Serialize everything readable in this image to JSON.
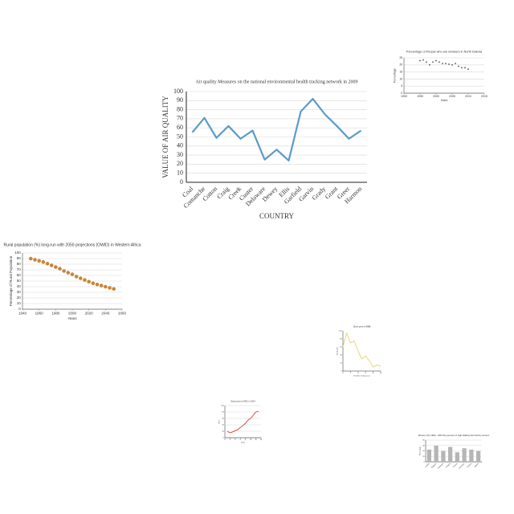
{
  "chart_data": [
    {
      "type": "line",
      "title": "Air quality Measures on the national environmental health tracking network in 2009",
      "x_label": "COUNTRY",
      "y_label": "VALUE OF AIR QUALITY",
      "categories": [
        "Coal",
        "Comanche",
        "Cotton",
        "Craig",
        "Creek",
        "Custer",
        "Delaware",
        "Dewey",
        "Ellis",
        "Garfield",
        "Garvin",
        "Grady",
        "Grant",
        "Greer",
        "Harmon"
      ],
      "values": [
        55,
        71,
        49,
        62,
        48,
        57,
        25,
        36,
        24,
        78,
        92,
        75,
        62,
        48,
        57
      ],
      "color": "#5b9bc8",
      "ylim": [
        0,
        100
      ],
      "yticks": [
        0,
        10,
        20,
        30,
        40,
        50,
        60,
        70,
        80,
        90,
        100
      ],
      "grid": true
    },
    {
      "type": "scatter",
      "title": "Percentage of People who are smokers in North Dakota",
      "x_label": "Years",
      "y_label": "Percentage",
      "x": [
        1995,
        1996,
        1997,
        1998,
        1999,
        2000,
        2001,
        2002,
        2003,
        2004,
        2005,
        2006,
        2007,
        2008,
        2009,
        2010
      ],
      "values": [
        23,
        23.5,
        22,
        20,
        22,
        23,
        22,
        21,
        21,
        20.5,
        20,
        21,
        19,
        18,
        18,
        17
      ],
      "color": "#555555",
      "xlim": [
        1990,
        2015
      ],
      "xticks": [
        1990,
        1995,
        2000,
        2005,
        2010,
        2015
      ],
      "ylim": [
        0,
        25
      ],
      "yticks": [
        0,
        5,
        10,
        15,
        20,
        25
      ],
      "grid": true
    },
    {
      "type": "scatter",
      "title": "Rural population (%) long-run with 2050 projections (OWID) in Western Africa",
      "x_label": "Years",
      "y_label": "Percentage of Rural Population",
      "x": [
        1950,
        1955,
        1960,
        1965,
        1970,
        1975,
        1980,
        1985,
        1990,
        1995,
        2000,
        2005,
        2010,
        2015,
        2020,
        2025,
        2030,
        2035,
        2040,
        2045,
        2050
      ],
      "values": [
        90,
        88,
        86,
        84,
        81,
        78,
        75,
        72,
        68,
        65,
        62,
        58,
        55,
        52,
        49,
        46,
        44,
        42,
        40,
        38,
        36
      ],
      "color": "#c8853a",
      "xlim": [
        1940,
        2060
      ],
      "xticks": [
        1940,
        1960,
        1980,
        2000,
        2020,
        2040,
        2060
      ],
      "ylim": [
        0,
        100
      ],
      "yticks": [
        0,
        10,
        20,
        30,
        40,
        50,
        60,
        70,
        80,
        90,
        100
      ],
      "grid": true
    },
    {
      "type": "line",
      "title": "Stock price of BBB",
      "x_label": "Number of days past",
      "y_label": "Stock price",
      "x": [
        0,
        1,
        2,
        3,
        4,
        5,
        6,
        7,
        8,
        9,
        10
      ],
      "values": [
        60,
        95,
        70,
        75,
        50,
        30,
        38,
        25,
        10,
        15,
        12
      ],
      "color": "#e6d77a",
      "xlim": [
        0,
        10
      ],
      "xticks": [
        0,
        2,
        4,
        6,
        8,
        10
      ],
      "ylim": [
        0,
        100
      ],
      "yticks": [
        0,
        20,
        40,
        60,
        80,
        100
      ],
      "grid": false
    },
    {
      "type": "line",
      "title": "Stock price of ABC in 2014",
      "x_label": "Days",
      "y_label": "Price",
      "x": [
        1,
        2,
        3,
        4,
        5,
        6,
        7,
        8,
        9,
        10,
        11,
        12,
        13
      ],
      "values": [
        20,
        15,
        18,
        22,
        25,
        32,
        38,
        45,
        55,
        60,
        70,
        80,
        82
      ],
      "color": "#d43a2a",
      "xlim": [
        0,
        14
      ],
      "xticks": [
        0,
        2,
        4,
        6,
        8,
        10,
        12,
        14
      ],
      "ylim": [
        0,
        100
      ],
      "yticks": [
        0,
        20,
        40,
        60,
        80,
        100
      ],
      "grid": true
    },
    {
      "type": "bar",
      "title": "Women (%) 1990 - 2015 the percent of high-skilled jobs held by women",
      "x_label": "",
      "y_label": "Percentage",
      "categories": [
        "Austria",
        "Belgium",
        "Denmark",
        "Finland",
        "France",
        "Germany",
        "Greece",
        "Ireland"
      ],
      "values": [
        45,
        60,
        40,
        55,
        35,
        50,
        45,
        40
      ],
      "color": "#b5b5b5",
      "ylim": [
        0,
        80
      ],
      "yticks": [
        0,
        20,
        40,
        60,
        80
      ],
      "grid": true
    }
  ]
}
